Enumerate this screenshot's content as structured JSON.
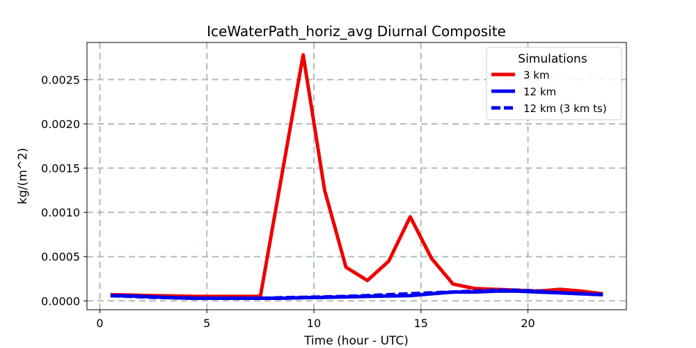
{
  "chart_data": {
    "type": "line",
    "title": "IceWaterPath_horiz_avg Diurnal Composite",
    "xlabel": "Time (hour - UTC)",
    "ylabel": "kg/(m^2)",
    "xlim": [
      -0.6,
      24.6
    ],
    "ylim": [
      -0.0001,
      0.00292
    ],
    "xticks": [
      0,
      5,
      10,
      15,
      20
    ],
    "xtick_labels": [
      "0",
      "5",
      "10",
      "15",
      "20"
    ],
    "yticks": [
      0.0,
      0.0005,
      0.001,
      0.0015,
      0.002,
      0.0025
    ],
    "ytick_labels": [
      "0.0000",
      "0.0005",
      "0.0010",
      "0.0015",
      "0.0020",
      "0.0025"
    ],
    "grid": true,
    "legend": {
      "title": "Simulations",
      "position": "top-right"
    },
    "x": [
      0.5,
      1.5,
      2.5,
      3.5,
      4.5,
      5.5,
      6.5,
      7.5,
      8.5,
      9.5,
      10.5,
      11.5,
      12.5,
      13.5,
      14.5,
      15.5,
      16.5,
      17.5,
      18.5,
      19.5,
      20.5,
      21.5,
      22.5,
      23.5
    ],
    "series": [
      {
        "name": "3 km",
        "color": "#ee0000",
        "style": "solid",
        "values": [
          7e-05,
          6.5e-05,
          6e-05,
          5.5e-05,
          5e-05,
          5e-05,
          5e-05,
          5e-05,
          0.00142,
          0.00278,
          0.00125,
          0.00038,
          0.00023,
          0.00045,
          0.00095,
          0.00048,
          0.00019,
          0.00014,
          0.00013,
          0.00012,
          0.00011,
          0.00013,
          0.00011,
          8e-05
        ]
      },
      {
        "name": "12 km",
        "color": "#0000ee",
        "style": "solid",
        "values": [
          6e-05,
          5.5e-05,
          4.5e-05,
          3.5e-05,
          3e-05,
          3e-05,
          3e-05,
          3e-05,
          3e-05,
          3.5e-05,
          4e-05,
          4.5e-05,
          5e-05,
          5.5e-05,
          6e-05,
          8e-05,
          0.0001,
          0.0001,
          0.00011,
          0.00011,
          0.0001,
          9e-05,
          8e-05,
          7e-05
        ]
      },
      {
        "name": "12 km (3 km ts)",
        "color": "#0000ee",
        "style": "dashed",
        "values": [
          6e-05,
          5e-05,
          4e-05,
          3.5e-05,
          3e-05,
          3e-05,
          3e-05,
          3e-05,
          3.5e-05,
          4e-05,
          4.5e-05,
          5e-05,
          6e-05,
          7e-05,
          8e-05,
          9e-05,
          0.0001,
          0.00011,
          0.00012,
          0.00012,
          0.00011,
          9e-05,
          8e-05,
          7e-05
        ]
      }
    ]
  }
}
